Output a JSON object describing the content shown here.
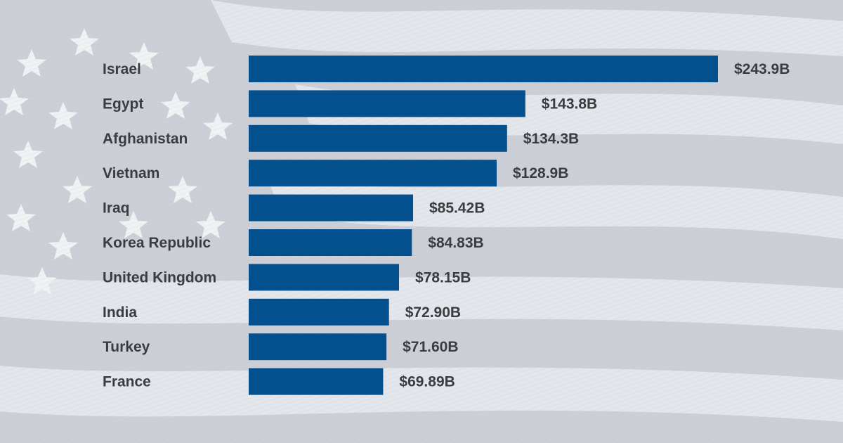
{
  "chart_data": {
    "type": "bar",
    "orientation": "horizontal",
    "categories": [
      "Israel",
      "Egypt",
      "Afghanistan",
      "Vietnam",
      "Iraq",
      "Korea Republic",
      "United Kingdom",
      "India",
      "Turkey",
      "France"
    ],
    "values": [
      243.9,
      143.8,
      134.3,
      128.9,
      85.42,
      84.83,
      78.15,
      72.9,
      71.6,
      69.89
    ],
    "value_labels": [
      "$243.9B",
      "$143.8B",
      "$134.3B",
      "$128.9B",
      "$85.42B",
      "$84.83B",
      "$78.15B",
      "$72.90B",
      "$71.60B",
      "$69.89B"
    ],
    "bar_color": "#04508f",
    "grid": false,
    "legend": "none"
  },
  "background": {
    "description_icon": "american-flag-icon",
    "base_color": "#ccd0d6",
    "stripe_color": "#e6e8eb",
    "star_color": "#f4f5f6"
  }
}
